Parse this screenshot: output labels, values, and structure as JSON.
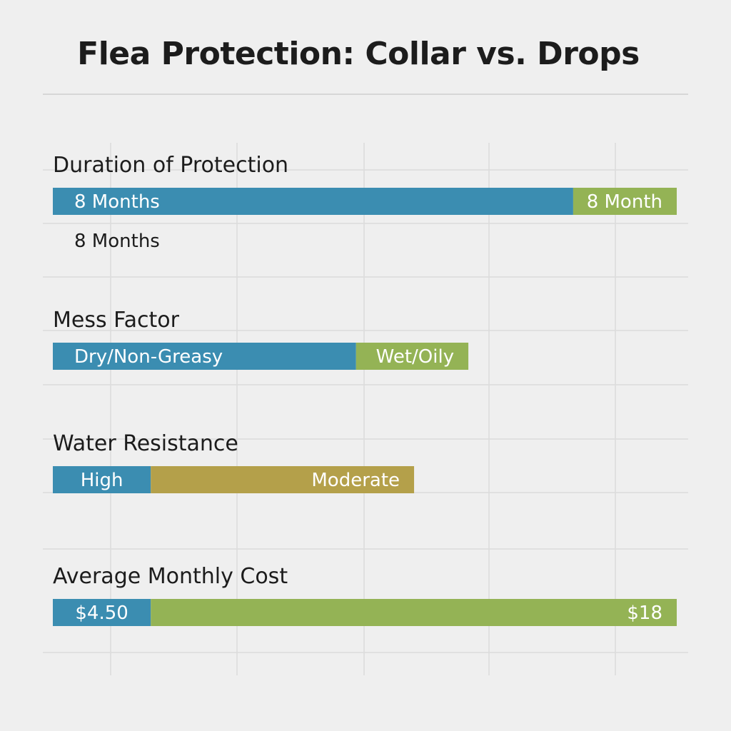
{
  "chart_data": {
    "type": "bar",
    "title": "Flea Protection: Collar vs. Drops",
    "grid": true,
    "colors": {
      "collar": "#3b8db1",
      "drops": "#94b355",
      "moderate": "#b4a04a"
    },
    "rows": [
      {
        "category": "Duration of Protection",
        "segments": [
          {
            "label": "8 Months",
            "value": 0.834,
            "color": "#3b8db1"
          },
          {
            "label": "8 Month",
            "value": 0.166,
            "color": "#94b355"
          }
        ],
        "sublabel": "8 Months"
      },
      {
        "category": "Mess Factor",
        "segments": [
          {
            "label": "Dry/Non-Greasy",
            "value": 0.486,
            "color": "#3b8db1"
          },
          {
            "label": "Wet/Oily",
            "value": 0.18,
            "color": "#94b355"
          }
        ],
        "sublabel": ""
      },
      {
        "category": "Water Resistance",
        "segments": [
          {
            "label": "High",
            "value": 0.157,
            "color": "#3b8db1"
          },
          {
            "label": "Moderate",
            "value": 0.422,
            "color": "#b4a04a"
          }
        ],
        "sublabel": ""
      },
      {
        "category": "Average Monthly Cost",
        "segments": [
          {
            "label": "$4.50",
            "value": 0.157,
            "color": "#3b8db1"
          },
          {
            "label": "$18",
            "value": 0.843,
            "color": "#94b355"
          }
        ],
        "sublabel": ""
      }
    ]
  }
}
